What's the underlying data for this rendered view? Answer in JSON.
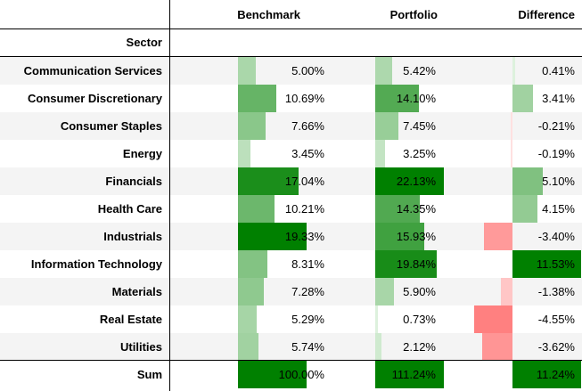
{
  "header": {
    "columns": [
      "Benchmark",
      "Portfolio",
      "Difference"
    ],
    "index_name": "Sector"
  },
  "rows": [
    {
      "sector": "Communication Services",
      "benchmark": "5.00%",
      "portfolio": "5.42%",
      "difference": "0.41%",
      "b": 5.0,
      "p": 5.42,
      "d": 0.41
    },
    {
      "sector": "Consumer Discretionary",
      "benchmark": "10.69%",
      "portfolio": "14.10%",
      "difference": "3.41%",
      "b": 10.69,
      "p": 14.1,
      "d": 3.41
    },
    {
      "sector": "Consumer Staples",
      "benchmark": "7.66%",
      "portfolio": "7.45%",
      "difference": "-0.21%",
      "b": 7.66,
      "p": 7.45,
      "d": -0.21
    },
    {
      "sector": "Energy",
      "benchmark": "3.45%",
      "portfolio": "3.25%",
      "difference": "-0.19%",
      "b": 3.45,
      "p": 3.25,
      "d": -0.19
    },
    {
      "sector": "Financials",
      "benchmark": "17.04%",
      "portfolio": "22.13%",
      "difference": "5.10%",
      "b": 17.04,
      "p": 22.13,
      "d": 5.1
    },
    {
      "sector": "Health Care",
      "benchmark": "10.21%",
      "portfolio": "14.35%",
      "difference": "4.15%",
      "b": 10.21,
      "p": 14.35,
      "d": 4.15
    },
    {
      "sector": "Industrials",
      "benchmark": "19.33%",
      "portfolio": "15.93%",
      "difference": "-3.40%",
      "b": 19.33,
      "p": 15.93,
      "d": -3.4
    },
    {
      "sector": "Information Technology",
      "benchmark": "8.31%",
      "portfolio": "19.84%",
      "difference": "11.53%",
      "b": 8.31,
      "p": 19.84,
      "d": 11.53
    },
    {
      "sector": "Materials",
      "benchmark": "7.28%",
      "portfolio": "5.90%",
      "difference": "-1.38%",
      "b": 7.28,
      "p": 5.9,
      "d": -1.38
    },
    {
      "sector": "Real Estate",
      "benchmark": "5.29%",
      "portfolio": "0.73%",
      "difference": "-4.55%",
      "b": 5.29,
      "p": 0.73,
      "d": -4.55
    },
    {
      "sector": "Utilities",
      "benchmark": "5.74%",
      "portfolio": "2.12%",
      "difference": "-3.62%",
      "b": 5.74,
      "p": 2.12,
      "d": -3.62
    }
  ],
  "sum": {
    "sector": "Sum",
    "benchmark": "100.00%",
    "portfolio": "111.24%",
    "difference": "11.24%"
  },
  "colors": {
    "pos_strong": "#008000",
    "pos_light": "#e5f5e5",
    "neg_strong": "#ff8080",
    "neg_light": "#ffe5e5"
  }
}
